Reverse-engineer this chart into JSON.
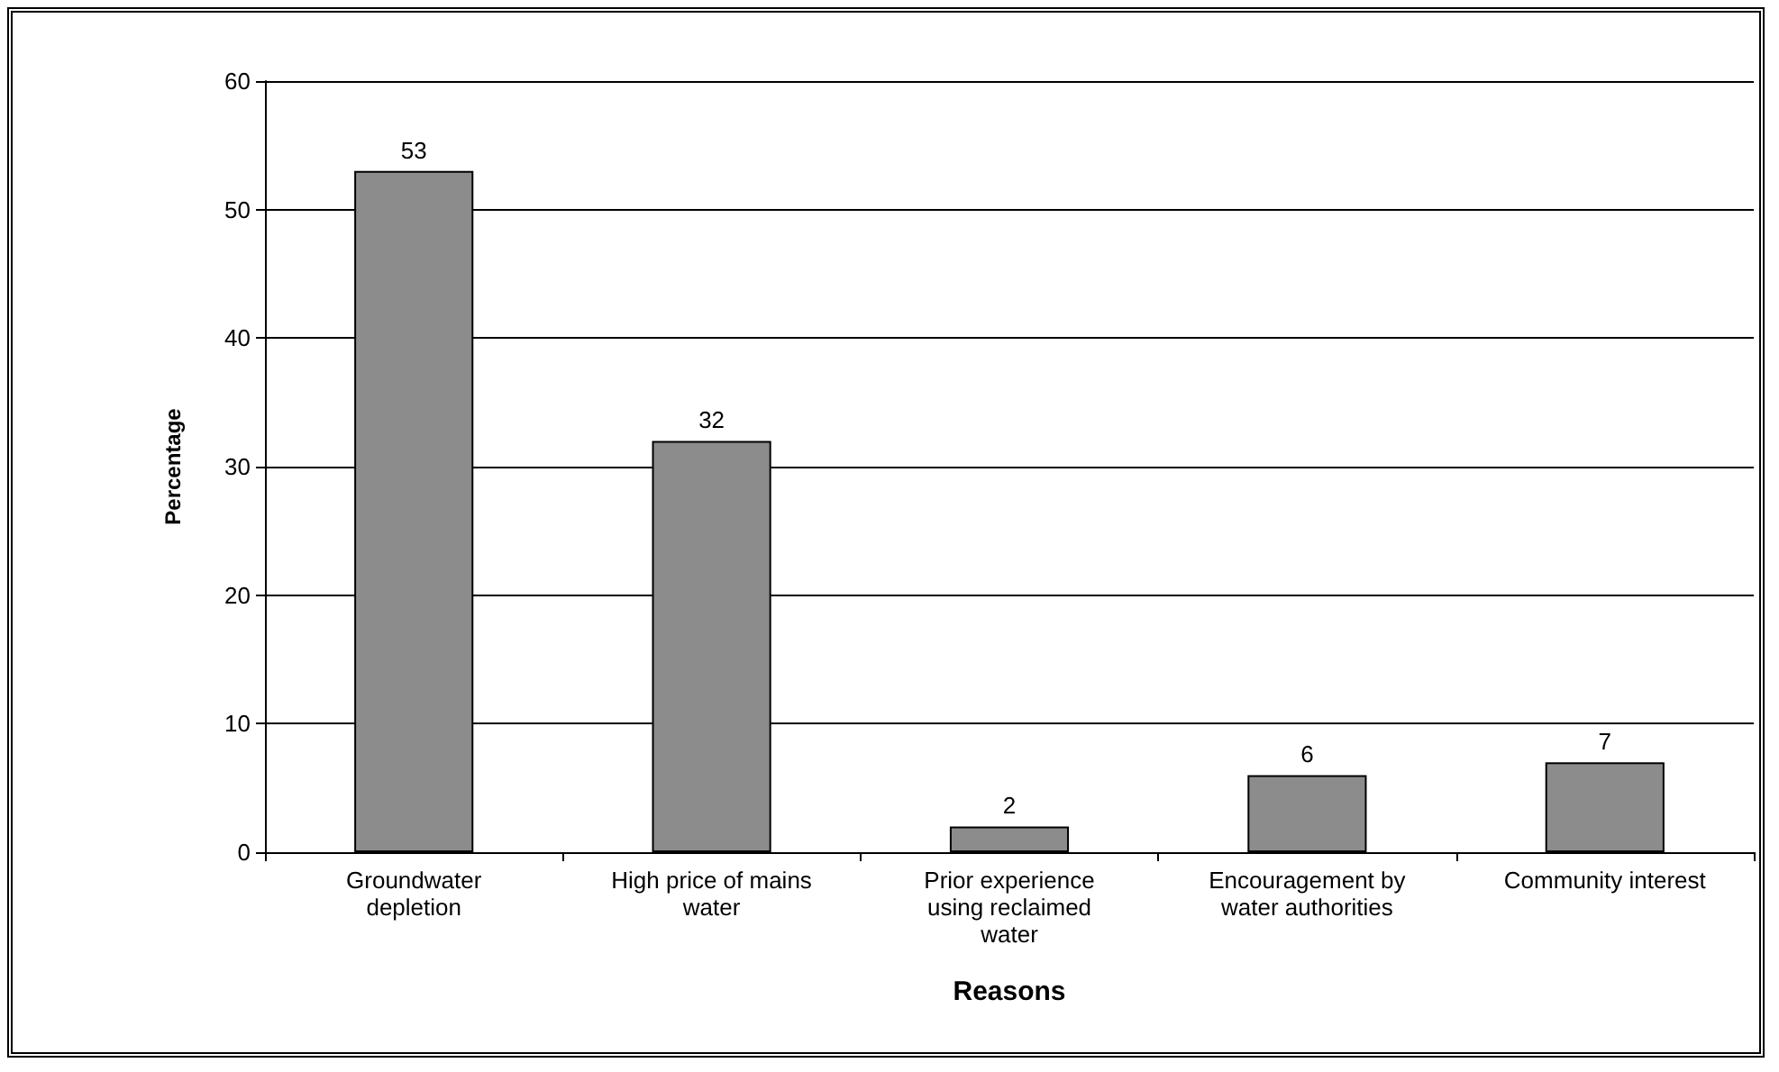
{
  "chart_data": {
    "type": "bar",
    "xlabel": "Reasons",
    "ylabel": "Percentage",
    "categories": [
      "Groundwater depletion",
      "High price of mains water",
      "Prior experience using reclaimed water",
      "Encouragement by water authorities",
      "Community interest"
    ],
    "values": [
      53,
      32,
      2,
      6,
      7
    ],
    "color": "#8c8c8c",
    "ylim": [
      0,
      60
    ],
    "yticks": [
      0,
      10,
      20,
      30,
      40,
      50,
      60
    ],
    "grid": "y",
    "data_labels": true
  }
}
